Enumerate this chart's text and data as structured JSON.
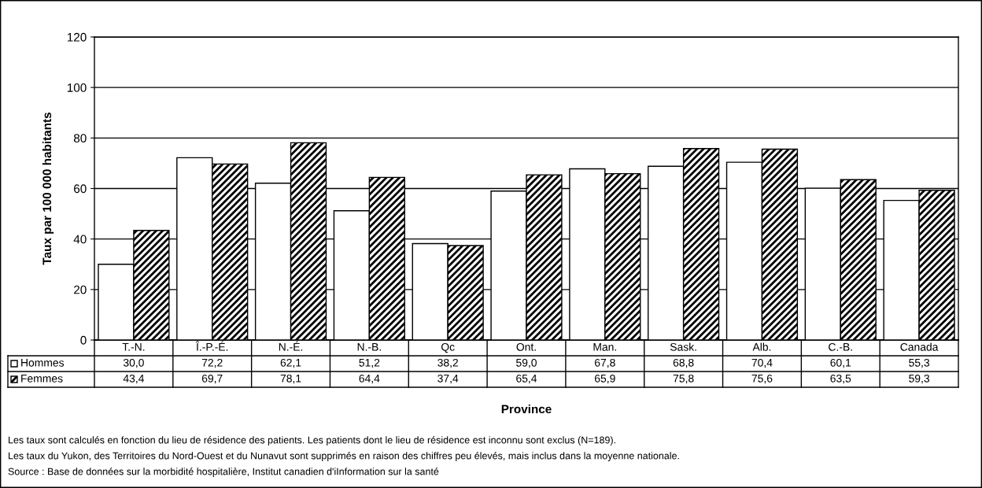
{
  "chart_data": {
    "type": "bar",
    "categories": [
      "T.-N.",
      "Î.-P.-É.",
      "N.-É.",
      "N.-B.",
      "Qc",
      "Ont.",
      "Man.",
      "Sask.",
      "Alb.",
      "C.-B.",
      "Canada"
    ],
    "series": [
      {
        "name": "Hommes",
        "color": "#ffffff",
        "values": [
          30.0,
          72.2,
          62.1,
          51.2,
          38.2,
          59.0,
          67.8,
          68.8,
          70.4,
          60.1,
          55.3
        ],
        "value_labels": [
          "30,0",
          "72,2",
          "62,1",
          "51,2",
          "38,2",
          "59,0",
          "67,8",
          "68,8",
          "70,4",
          "60,1",
          "55,3"
        ]
      },
      {
        "name": "Femmes",
        "color": "#000000",
        "values": [
          43.4,
          69.7,
          78.1,
          64.4,
          37.4,
          65.4,
          65.9,
          75.8,
          75.6,
          63.5,
          59.3
        ],
        "value_labels": [
          "43,4",
          "69,7",
          "78,1",
          "64,4",
          "37,4",
          "65,4",
          "65,9",
          "75,8",
          "75,6",
          "63,5",
          "59,3"
        ]
      }
    ],
    "ylabel": "Taux par 100 000 habitants",
    "xlabel": "Province",
    "ylim": [
      0,
      120
    ],
    "yticks": [
      0,
      20,
      40,
      60,
      80,
      100,
      120
    ],
    "grid": "y",
    "legend": "left",
    "annotations": [
      "Les taux sont calculés en fonction du lieu de résidence des patients. Les patients dont le lieu de résidence est inconnu sont exclus (N=189).",
      "Les taux du Yukon, des Territoires du Nord-Ouest et du Nunavut sont supprimés en raison des chiffres peu élevés, mais inclus dans la moyenne nationale.",
      "Source : Base de données sur la morbidité hospitalière, Institut canadien d'iInformation sur la santé"
    ]
  }
}
